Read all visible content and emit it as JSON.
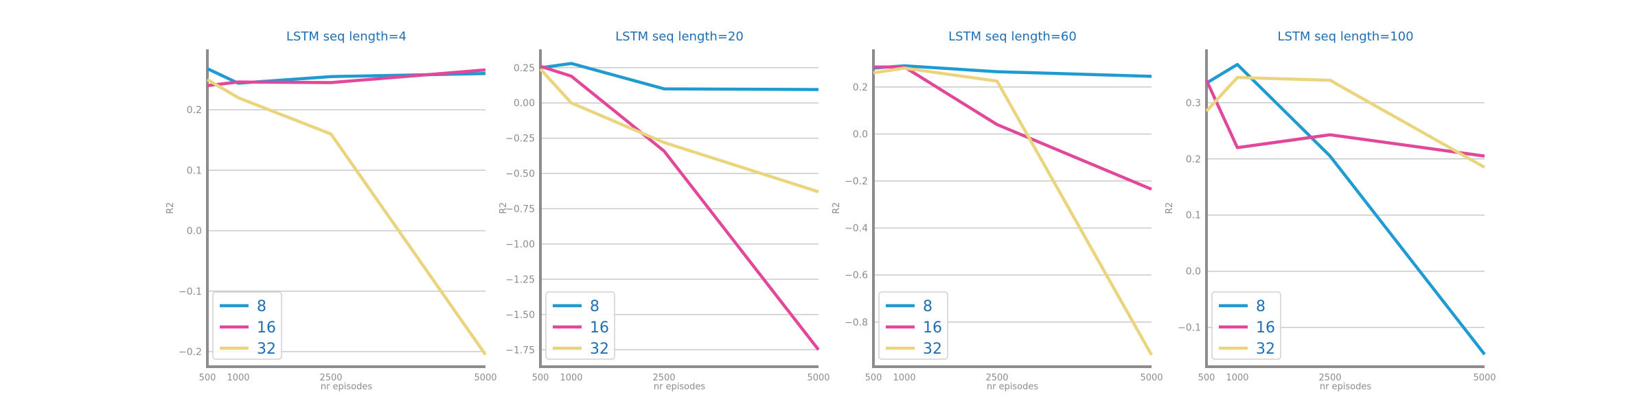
{
  "colors": {
    "title": "#1f6fb2",
    "axis": "#8c8c8c",
    "tick_label": "#8c8c8c",
    "grid": "#c9c9c9",
    "legend_text": "#1f6fb2",
    "legend_border": "#d0d0d0"
  },
  "chart_data": [
    {
      "type": "line",
      "title": "LSTM seq length=4",
      "xlabel": "nr episodes",
      "ylabel": "R2",
      "x": [
        500,
        1000,
        2500,
        5000
      ],
      "xticks": [
        "500",
        "1000",
        "2500",
        "5000"
      ],
      "xlim": [
        500,
        5000
      ],
      "ylim": [
        -0.225,
        0.3
      ],
      "yticks": [
        -0.2,
        -0.1,
        0.0,
        0.1,
        0.2
      ],
      "ytick_labels": [
        "−0.2",
        "−0.1",
        "0.0",
        "0.1",
        "0.2"
      ],
      "grid": "horizontal",
      "legend_position": "lower-left",
      "series": [
        {
          "name": "8",
          "color": "#1f9bd1",
          "values": [
            0.268,
            0.244,
            0.255,
            0.26
          ]
        },
        {
          "name": "16",
          "color": "#e2489a",
          "values": [
            0.24,
            0.246,
            0.245,
            0.266
          ]
        },
        {
          "name": "32",
          "color": "#ead47d",
          "values": [
            0.25,
            0.22,
            0.16,
            -0.205
          ]
        }
      ]
    },
    {
      "type": "line",
      "title": "LSTM seq length=20",
      "xlabel": "nr episodes",
      "ylabel": "R2",
      "x": [
        500,
        1000,
        2500,
        5000
      ],
      "xticks": [
        "500",
        "1000",
        "2500",
        "5000"
      ],
      "xlim": [
        500,
        5000
      ],
      "ylim": [
        -1.87,
        0.38
      ],
      "yticks": [
        -1.75,
        -1.5,
        -1.25,
        -1.0,
        -0.75,
        -0.5,
        -0.25,
        0.0,
        0.25
      ],
      "ytick_labels": [
        "−1.75",
        "−1.50",
        "−1.25",
        "−1.00",
        "−0.75",
        "−0.50",
        "−0.25",
        "0.00",
        "0.25"
      ],
      "grid": "horizontal",
      "legend_position": "lower-left",
      "series": [
        {
          "name": "8",
          "color": "#1f9bd1",
          "values": [
            0.25,
            0.28,
            0.1,
            0.095
          ]
        },
        {
          "name": "16",
          "color": "#e2489a",
          "values": [
            0.26,
            0.19,
            -0.34,
            -1.75
          ]
        },
        {
          "name": "32",
          "color": "#ead47d",
          "values": [
            0.24,
            0.0,
            -0.28,
            -0.63
          ]
        }
      ]
    },
    {
      "type": "line",
      "title": "LSTM seq length=60",
      "xlabel": "nr episodes",
      "ylabel": "R2",
      "x": [
        500,
        1000,
        2500,
        5000
      ],
      "xticks": [
        "500",
        "1000",
        "2500",
        "5000"
      ],
      "xlim": [
        500,
        5000
      ],
      "ylim": [
        -0.99,
        0.36
      ],
      "yticks": [
        -0.8,
        -0.6,
        -0.4,
        -0.2,
        0.0,
        0.2
      ],
      "ytick_labels": [
        "−0.8",
        "−0.6",
        "−0.4",
        "−0.2",
        "0.0",
        "0.2"
      ],
      "grid": "horizontal",
      "legend_position": "lower-left",
      "series": [
        {
          "name": "8",
          "color": "#1f9bd1",
          "values": [
            0.28,
            0.29,
            0.265,
            0.245
          ]
        },
        {
          "name": "16",
          "color": "#e2489a",
          "values": [
            0.285,
            0.285,
            0.04,
            -0.235
          ]
        },
        {
          "name": "32",
          "color": "#ead47d",
          "values": [
            0.26,
            0.28,
            0.225,
            -0.94
          ]
        }
      ]
    },
    {
      "type": "line",
      "title": "LSTM seq length=100",
      "xlabel": "nr episodes",
      "ylabel": "R2",
      "x": [
        500,
        1000,
        2500,
        5000
      ],
      "xticks": [
        "500",
        "1000",
        "2500",
        "5000"
      ],
      "xlim": [
        500,
        5000
      ],
      "ylim": [
        -0.17,
        0.395
      ],
      "yticks": [
        -0.1,
        0.0,
        0.1,
        0.2,
        0.3
      ],
      "ytick_labels": [
        "−0.1",
        "0.0",
        "0.1",
        "0.2",
        "0.3"
      ],
      "grid": "horizontal",
      "legend_position": "lower-left",
      "series": [
        {
          "name": "8",
          "color": "#1f9bd1",
          "values": [
            0.335,
            0.368,
            0.205,
            -0.148
          ]
        },
        {
          "name": "16",
          "color": "#e2489a",
          "values": [
            0.34,
            0.22,
            0.243,
            0.205
          ]
        },
        {
          "name": "32",
          "color": "#ead47d",
          "values": [
            0.285,
            0.345,
            0.34,
            0.185
          ]
        }
      ]
    }
  ]
}
